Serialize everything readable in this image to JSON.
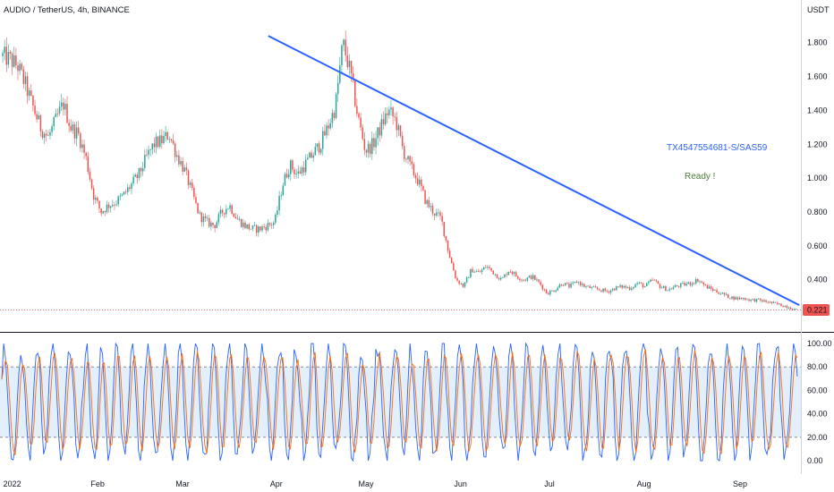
{
  "chart_title": "AUDIO / TetherUS, 4h, BINANCE",
  "price_axis": {
    "unit": "USDT",
    "ticks": [
      "1.800",
      "1.600",
      "1.400",
      "1.200",
      "1.000",
      "0.800",
      "0.600",
      "0.400"
    ],
    "tick_values": [
      1.8,
      1.6,
      1.4,
      1.2,
      1.0,
      0.8,
      0.6,
      0.4
    ],
    "ylim": [
      0.15,
      1.92
    ]
  },
  "current_price_label": "0.221",
  "annotation_text": "TX4547554681-S/SAS59",
  "annotation_text2": "Ready !",
  "colors": {
    "up": "#26a69a",
    "down": "#ef5350",
    "trendline": "#2962ff",
    "annotation": "#2962ff",
    "annotation2": "#4d7a3c",
    "stoch_k": "#2962ff",
    "stoch_d": "#ff6d00",
    "stoch_band": "#e3f0fb",
    "price_label_bg": "#ef5350"
  },
  "oscillator": {
    "ticks": [
      "100.00",
      "80.00",
      "60.00",
      "40.00",
      "20.00",
      "0.00"
    ],
    "tick_values": [
      100,
      80,
      60,
      40,
      20,
      0
    ],
    "upper_band": 80,
    "lower_band": 20
  },
  "time_axis": {
    "labels": [
      "2022",
      "Feb",
      "Mar",
      "Apr",
      "May",
      "Jun",
      "Jul",
      "Aug",
      "Sep"
    ]
  },
  "chart_data": {
    "type": "line",
    "title": "AUDIO / TetherUS, 4h, BINANCE",
    "xlabel": "",
    "ylabel": "USDT",
    "ylim": [
      0.15,
      1.92
    ],
    "grid": false,
    "series": [
      {
        "values": [
          1.72,
          1.7,
          1.66,
          1.55,
          1.42,
          1.3,
          1.24,
          1.34,
          1.44,
          1.3,
          1.26,
          1.12,
          0.9,
          0.8,
          0.84,
          0.86,
          0.9,
          0.96,
          1.02,
          1.12,
          1.2,
          1.22,
          1.26,
          1.14,
          1.05,
          0.92,
          0.78,
          0.74,
          0.72,
          0.8,
          0.84,
          0.76,
          0.72,
          0.7,
          0.7,
          0.72,
          0.74,
          0.96,
          1.08,
          1.02,
          1.08,
          1.14,
          1.2,
          1.3,
          1.42,
          1.8,
          1.62,
          1.36,
          1.16,
          1.2,
          1.3,
          1.4,
          1.34,
          1.16,
          1.06,
          0.98,
          0.86,
          0.8,
          0.76,
          0.56,
          0.4,
          0.36,
          0.46,
          0.44,
          0.48,
          0.44,
          0.4,
          0.46,
          0.42,
          0.4,
          0.42,
          0.38,
          0.32,
          0.34,
          0.38,
          0.36,
          0.39,
          0.36,
          0.35,
          0.34,
          0.33,
          0.35,
          0.36,
          0.35,
          0.38,
          0.36,
          0.4,
          0.36,
          0.34,
          0.36,
          0.37,
          0.38,
          0.4,
          0.36,
          0.34,
          0.32,
          0.3,
          0.29,
          0.29,
          0.28,
          0.28,
          0.27,
          0.26,
          0.25,
          0.24,
          0.22
        ]
      },
      {
        "name": "Trendline",
        "x": [
          0.335,
          0.998
        ],
        "values": [
          1.84,
          0.25
        ]
      }
    ]
  }
}
